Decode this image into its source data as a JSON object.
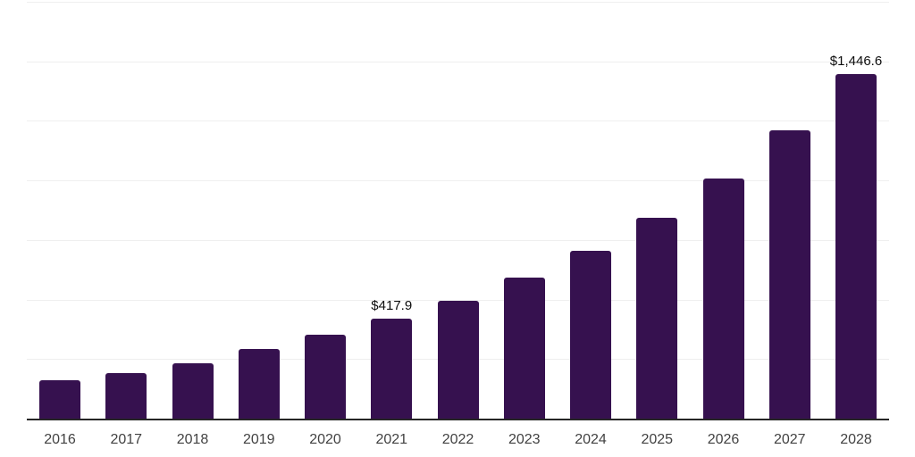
{
  "chart_data": {
    "type": "bar",
    "title": "",
    "xlabel": "",
    "ylabel": "",
    "categories": [
      "2016",
      "2017",
      "2018",
      "2019",
      "2020",
      "2021",
      "2022",
      "2023",
      "2024",
      "2025",
      "2026",
      "2027",
      "2028"
    ],
    "values": [
      160,
      192,
      233,
      294,
      351,
      417.9,
      495,
      593,
      706,
      845,
      1009,
      1211,
      1446.6
    ],
    "value_labels": {
      "2021": "$417.9",
      "2028": "$1,446.6"
    },
    "ylim": [
      0,
      1750
    ],
    "gridline_interval": 250,
    "grid": "horizontal-only",
    "y_tick_labels_visible": false,
    "legend_position": "none",
    "colors": {
      "bar": "#36114f",
      "axis_line": "#262626",
      "gridline": "#efefef",
      "x_tick_label": "#424242",
      "value_label": "#0d0d0d",
      "background": "#ffffff"
    }
  }
}
